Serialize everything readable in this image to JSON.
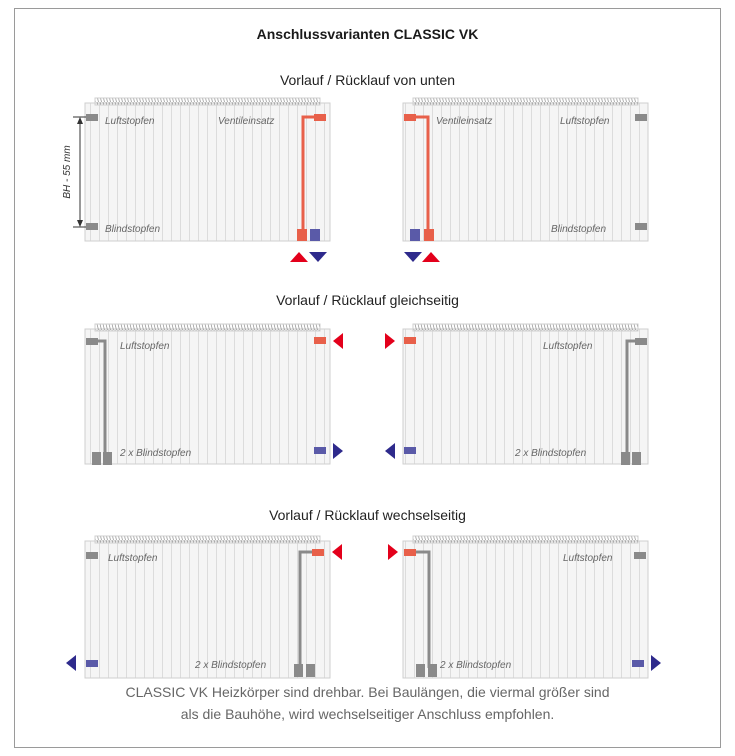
{
  "title": "Anschlussvarianten CLASSIC VK",
  "sections": [
    {
      "title": "Vorlauf / Rücklauf von unten"
    },
    {
      "title": "Vorlauf / Rücklauf gleichseitig"
    },
    {
      "title": "Vorlauf / Rücklauf wechselseitig"
    }
  ],
  "labels": {
    "air_plug": "Luftstopfen",
    "valve_insert": "Ventileinsatz",
    "blind_plug": "Blindstopfen",
    "blind_plug_2x": "2 x Blindstopfen",
    "dimension": "BH - 55 mm"
  },
  "footer": {
    "line1": "CLASSIC VK Heizkörper sind drehbar. Bei Baulängen, die viermal größer sind",
    "line2": "als die Bauhöhe, wird wechselseitiger Anschluss empfohlen."
  },
  "colors": {
    "supply": "#e3001b",
    "return": "#2e2a8c",
    "pipe_red": "#e8604a",
    "pipe_gray": "#8a8a8a",
    "panel": "#f3f3f3"
  }
}
